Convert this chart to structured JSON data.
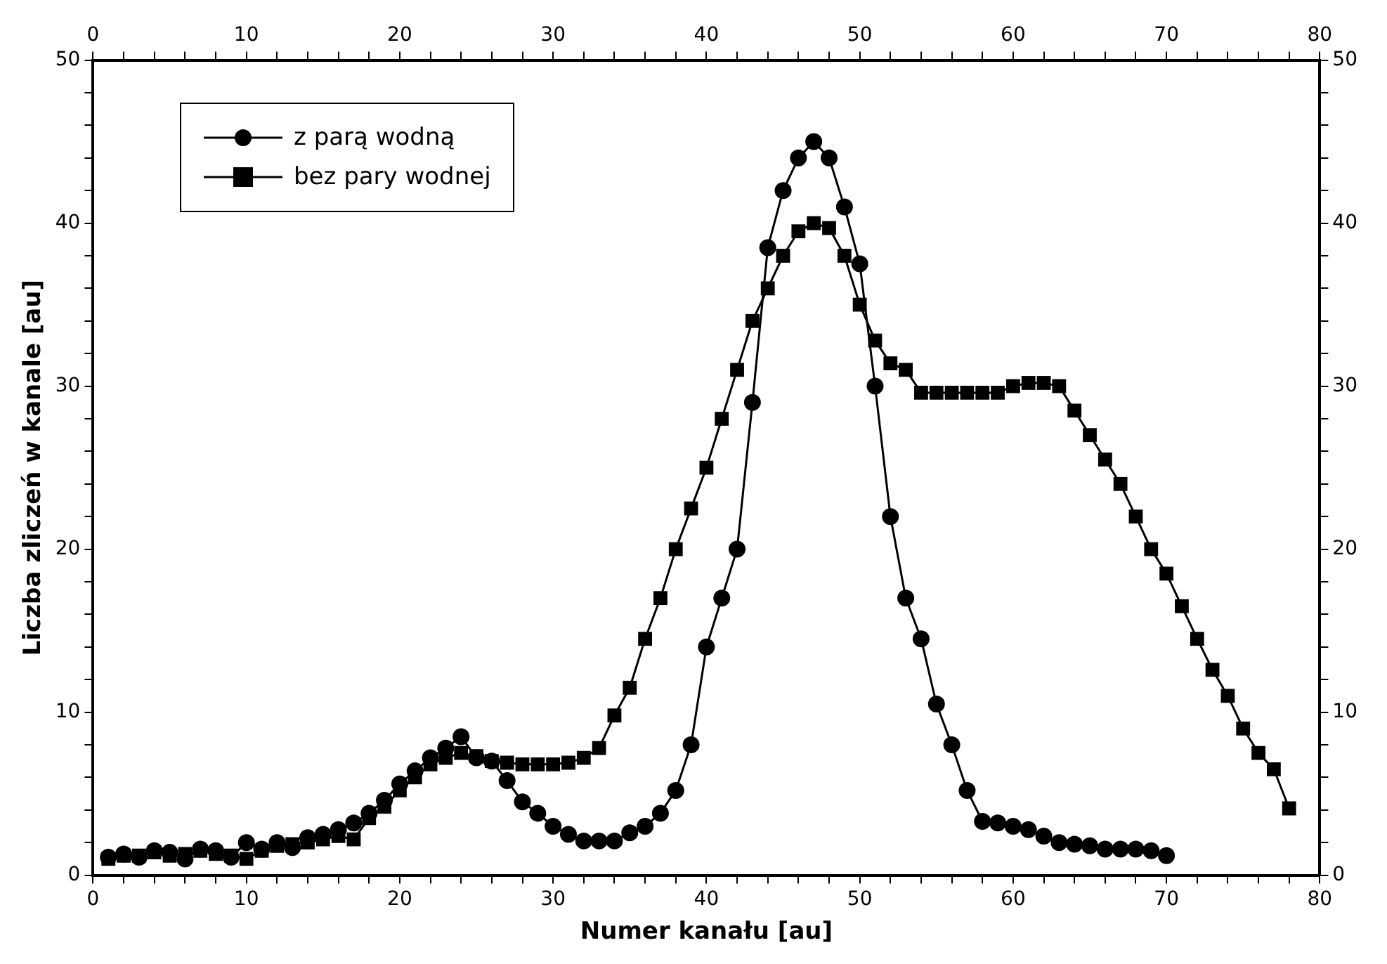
{
  "chart_data": {
    "type": "line",
    "xlabel": "Numer kanału [au]",
    "ylabel": "Liczba zliczeń w kanale [au]",
    "xlim": [
      0,
      80
    ],
    "xticks": [
      0,
      {
        "value": 2,
        "label": null
      },
      {
        "value": 4,
        "label": null
      },
      {
        "value": 6,
        "label": null
      },
      {
        "value": 8,
        "label": null
      },
      10,
      {
        "value": 12,
        "label": null
      },
      {
        "value": 14,
        "label": null
      },
      {
        "value": 16,
        "label": null
      },
      {
        "value": 18,
        "label": null
      },
      20,
      {
        "value": 22,
        "label": null
      },
      {
        "value": 24,
        "label": null
      },
      {
        "value": 26,
        "label": null
      },
      {
        "value": 28,
        "label": null
      },
      30,
      {
        "value": 32,
        "label": null
      },
      {
        "value": 34,
        "label": null
      },
      {
        "value": 36,
        "label": null
      },
      {
        "value": 38,
        "label": null
      },
      40,
      {
        "value": 42,
        "label": null
      },
      {
        "value": 44,
        "label": null
      },
      {
        "value": 46,
        "label": null
      },
      {
        "value": 48,
        "label": null
      },
      50,
      {
        "value": 52,
        "label": null
      },
      {
        "value": 54,
        "label": null
      },
      {
        "value": 56,
        "label": null
      },
      {
        "value": 58,
        "label": null
      },
      60,
      {
        "value": 62,
        "label": null
      },
      {
        "value": 64,
        "label": null
      },
      {
        "value": 66,
        "label": null
      },
      {
        "value": 68,
        "label": null
      },
      70,
      {
        "value": 72,
        "label": null
      },
      {
        "value": 74,
        "label": null
      },
      {
        "value": 76,
        "label": null
      },
      {
        "value": 78,
        "label": null
      },
      80
    ],
    "x2lim": [
      0,
      80
    ],
    "x2ticks": [
      0,
      {
        "value": 2,
        "label": null
      },
      {
        "value": 4,
        "label": null
      },
      {
        "value": 6,
        "label": null
      },
      {
        "value": 8,
        "label": null
      },
      10,
      {
        "value": 12,
        "label": null
      },
      {
        "value": 14,
        "label": null
      },
      {
        "value": 16,
        "label": null
      },
      {
        "value": 18,
        "label": null
      },
      20,
      {
        "value": 22,
        "label": null
      },
      {
        "value": 24,
        "label": null
      },
      {
        "value": 26,
        "label": null
      },
      {
        "value": 28,
        "label": null
      },
      30,
      {
        "value": 32,
        "label": null
      },
      {
        "value": 34,
        "label": null
      },
      {
        "value": 36,
        "label": null
      },
      {
        "value": 38,
        "label": null
      },
      40,
      {
        "value": 42,
        "label": null
      },
      {
        "value": 44,
        "label": null
      },
      {
        "value": 46,
        "label": null
      },
      {
        "value": 48,
        "label": null
      },
      50,
      {
        "value": 52,
        "label": null
      },
      {
        "value": 54,
        "label": null
      },
      {
        "value": 56,
        "label": null
      },
      {
        "value": 58,
        "label": null
      },
      60,
      {
        "value": 62,
        "label": null
      },
      {
        "value": 64,
        "label": null
      },
      {
        "value": 66,
        "label": null
      },
      {
        "value": 68,
        "label": null
      },
      70,
      {
        "value": 72,
        "label": null
      },
      {
        "value": 74,
        "label": null
      },
      {
        "value": 76,
        "label": null
      },
      {
        "value": 78,
        "label": null
      },
      80
    ],
    "ylim": [
      0,
      50
    ],
    "yticks": [
      0,
      {
        "value": 2,
        "label": null
      },
      {
        "value": 4,
        "label": null
      },
      {
        "value": 6,
        "label": null
      },
      {
        "value": 8,
        "label": null
      },
      10,
      {
        "value": 12,
        "label": null
      },
      {
        "value": 14,
        "label": null
      },
      {
        "value": 16,
        "label": null
      },
      {
        "value": 18,
        "label": null
      },
      20,
      {
        "value": 22,
        "label": null
      },
      {
        "value": 24,
        "label": null
      },
      {
        "value": 26,
        "label": null
      },
      {
        "value": 28,
        "label": null
      },
      30,
      {
        "value": 32,
        "label": null
      },
      {
        "value": 34,
        "label": null
      },
      {
        "value": 36,
        "label": null
      },
      {
        "value": 38,
        "label": null
      },
      40,
      {
        "value": 42,
        "label": null
      },
      {
        "value": 44,
        "label": null
      },
      {
        "value": 46,
        "label": null
      },
      {
        "value": 48,
        "label": null
      },
      50
    ],
    "y2lim": [
      0,
      50
    ],
    "y2ticks": [
      0,
      {
        "value": 2,
        "label": null
      },
      {
        "value": 4,
        "label": null
      },
      {
        "value": 6,
        "label": null
      },
      {
        "value": 8,
        "label": null
      },
      10,
      {
        "value": 12,
        "label": null
      },
      {
        "value": 14,
        "label": null
      },
      {
        "value": 16,
        "label": null
      },
      {
        "value": 18,
        "label": null
      },
      20,
      {
        "value": 22,
        "label": null
      },
      {
        "value": 24,
        "label": null
      },
      {
        "value": 26,
        "label": null
      },
      {
        "value": 28,
        "label": null
      },
      30,
      {
        "value": 32,
        "label": null
      },
      {
        "value": 34,
        "label": null
      },
      {
        "value": 36,
        "label": null
      },
      {
        "value": 38,
        "label": null
      },
      40,
      {
        "value": 42,
        "label": null
      },
      {
        "value": 44,
        "label": null
      },
      {
        "value": 46,
        "label": null
      },
      {
        "value": 48,
        "label": null
      },
      50
    ],
    "grid": false,
    "legend": "top left",
    "line_style": "solid",
    "series": [
      {
        "name": "z parą wodną",
        "color": "#000000",
        "marker": "circle",
        "x": [
          1,
          2,
          3,
          4,
          5,
          6,
          7,
          8,
          9,
          10,
          11,
          12,
          13,
          14,
          15,
          16,
          17,
          18,
          19,
          20,
          21,
          22,
          23,
          24,
          25,
          26,
          27,
          28,
          29,
          30,
          31,
          32,
          33,
          34,
          35,
          36,
          37,
          38,
          39,
          40,
          41,
          42,
          43,
          44,
          45,
          46,
          47,
          48,
          49,
          50,
          51,
          52,
          53,
          54,
          55,
          56,
          57,
          58,
          59,
          60,
          61,
          62,
          63,
          64,
          65,
          66,
          67,
          68,
          69,
          70
        ],
        "values": [
          1.1,
          1.3,
          1.1,
          1.5,
          1.4,
          1.0,
          1.6,
          1.5,
          1.1,
          2.0,
          1.6,
          2.0,
          1.7,
          2.3,
          2.5,
          2.8,
          3.2,
          3.8,
          4.6,
          5.6,
          6.4,
          7.2,
          7.8,
          8.5,
          7.2,
          7.0,
          5.8,
          4.5,
          3.8,
          3.0,
          2.5,
          2.1,
          2.1,
          2.1,
          2.6,
          3.0,
          3.8,
          5.2,
          8.0,
          14.0,
          17.0,
          20.0,
          29.0,
          38.5,
          42.0,
          44.0,
          45.0,
          44.0,
          41.0,
          37.5,
          30.0,
          22.0,
          17.0,
          14.5,
          10.5,
          8.0,
          5.2,
          3.3,
          3.2,
          3.0,
          2.8,
          2.4,
          2.0,
          1.9,
          1.8,
          1.6,
          1.6,
          1.6,
          1.5,
          1.2
        ]
      },
      {
        "name": "bez pary wodnej",
        "color": "#000000",
        "marker": "square",
        "x": [
          1,
          2,
          3,
          4,
          5,
          6,
          7,
          8,
          9,
          10,
          11,
          12,
          13,
          14,
          15,
          16,
          17,
          18,
          19,
          20,
          21,
          22,
          23,
          24,
          25,
          26,
          27,
          28,
          29,
          30,
          31,
          32,
          33,
          34,
          35,
          36,
          37,
          38,
          39,
          40,
          41,
          42,
          43,
          44,
          45,
          46,
          47,
          48,
          49,
          50,
          51,
          52,
          53,
          54,
          55,
          56,
          57,
          58,
          59,
          60,
          61,
          62,
          63,
          64,
          65,
          66,
          67,
          68,
          69,
          70,
          71,
          72,
          73,
          74,
          75,
          76,
          77,
          78
        ],
        "values": [
          1.0,
          1.2,
          1.2,
          1.4,
          1.2,
          1.3,
          1.5,
          1.3,
          1.2,
          1.0,
          1.5,
          1.8,
          1.9,
          2.0,
          2.2,
          2.4,
          2.2,
          3.5,
          4.2,
          5.2,
          6.0,
          6.8,
          7.2,
          7.5,
          7.3,
          7.0,
          6.9,
          6.8,
          6.8,
          6.8,
          6.9,
          7.2,
          7.8,
          9.8,
          11.5,
          14.5,
          17.0,
          20.0,
          22.5,
          25.0,
          28.0,
          31.0,
          34.0,
          36.0,
          38.0,
          39.5,
          40.0,
          39.7,
          38.0,
          35.0,
          32.8,
          31.4,
          31.0,
          29.6,
          29.6,
          29.6,
          29.6,
          29.6,
          29.6,
          30.0,
          30.2,
          30.2,
          30.0,
          28.5,
          27.0,
          25.5,
          24.0,
          22.0,
          20.0,
          18.5,
          16.5,
          14.5,
          12.6,
          11.0,
          9.0,
          7.5,
          6.5,
          4.1
        ]
      }
    ]
  }
}
